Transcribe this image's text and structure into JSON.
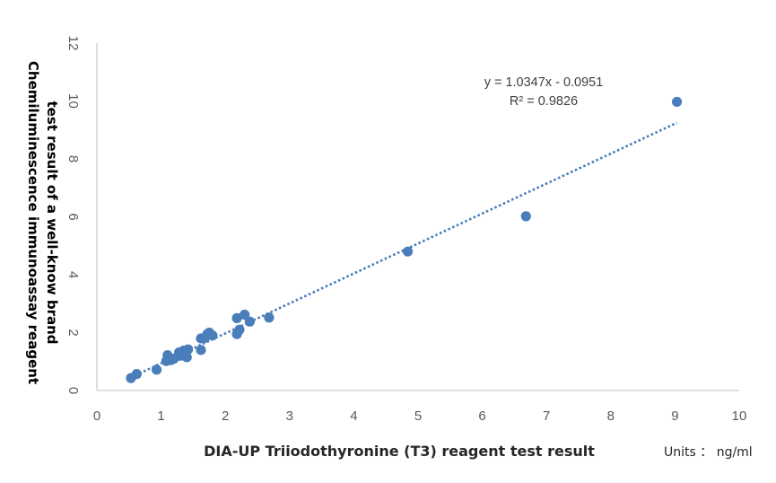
{
  "chart_data": {
    "type": "scatter",
    "xlabel": "DIA-UP Triiodothyronine (T3) reagent test result",
    "ylabel_lines": [
      "Chemiluminescence immunoassay reagent",
      "test result of a well-know brand"
    ],
    "units": "Units ： ng/ml",
    "xlim": [
      0,
      10
    ],
    "ylim": [
      0,
      12
    ],
    "xticks": [
      0,
      1,
      2,
      3,
      4,
      5,
      6,
      7,
      8,
      9,
      10
    ],
    "yticks": [
      0,
      2,
      4,
      6,
      8,
      10,
      12
    ],
    "grid": false,
    "series": [
      {
        "color": "#4a7ebb",
        "points": [
          [
            0.53,
            0.43
          ],
          [
            0.62,
            0.57
          ],
          [
            0.93,
            0.72
          ],
          [
            1.08,
            1.02
          ],
          [
            1.1,
            1.22
          ],
          [
            1.15,
            1.05
          ],
          [
            1.2,
            1.1
          ],
          [
            1.28,
            1.32
          ],
          [
            1.3,
            1.2
          ],
          [
            1.35,
            1.38
          ],
          [
            1.38,
            1.25
          ],
          [
            1.4,
            1.15
          ],
          [
            1.42,
            1.42
          ],
          [
            1.62,
            1.8
          ],
          [
            1.62,
            1.4
          ],
          [
            1.68,
            1.82
          ],
          [
            1.72,
            1.95
          ],
          [
            1.75,
            2.0
          ],
          [
            1.8,
            1.9
          ],
          [
            2.18,
            2.5
          ],
          [
            2.18,
            1.95
          ],
          [
            2.22,
            2.1
          ],
          [
            2.3,
            2.62
          ],
          [
            2.38,
            2.38
          ],
          [
            2.68,
            2.52
          ],
          [
            4.84,
            4.8
          ],
          [
            6.68,
            6.02
          ],
          [
            9.03,
            9.97
          ]
        ]
      }
    ],
    "trendline": {
      "slope": 1.0347,
      "intercept": -0.0951,
      "x_range": [
        0.53,
        9.03
      ],
      "color": "#4a7ebb",
      "equation": "y = 1.0347x - 0.0951",
      "r2": "R² = 0.9826"
    }
  }
}
